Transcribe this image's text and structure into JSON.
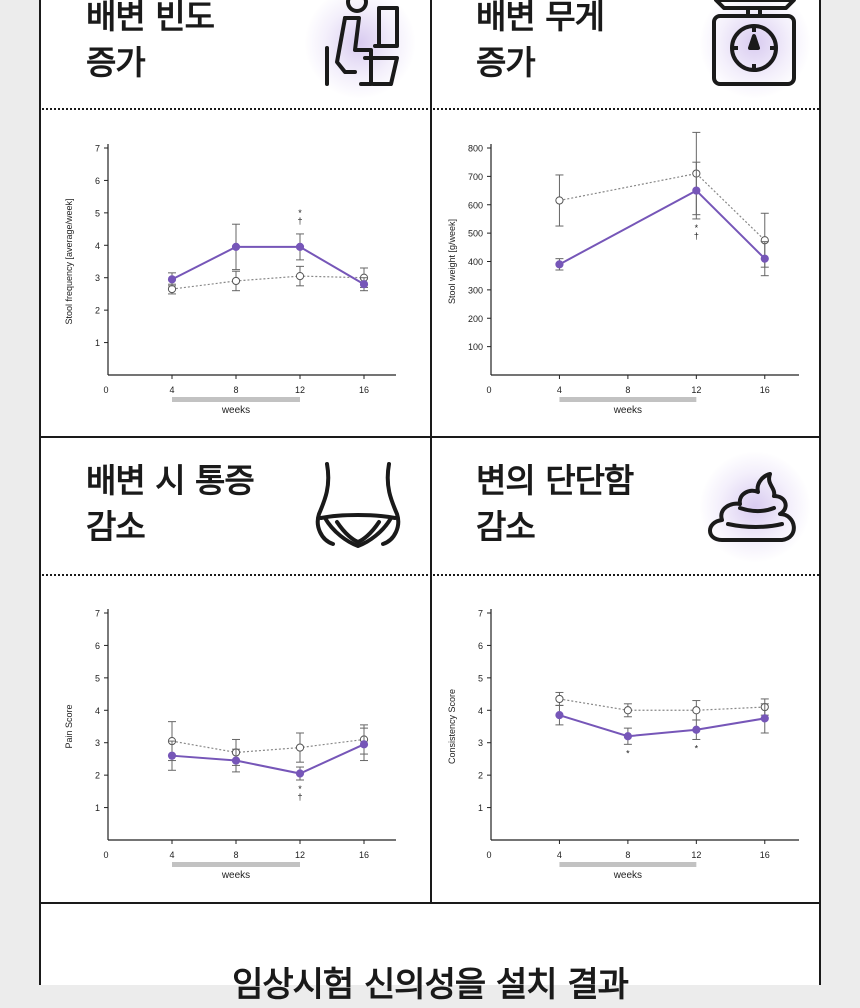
{
  "panels": [
    {
      "title_line1": "배변 빈도",
      "title_line2": "증가",
      "icon": "toilet-icon"
    },
    {
      "title_line1": "배변 무게",
      "title_line2": "증가",
      "icon": "scale-icon"
    },
    {
      "title_line1": "배변 시 통증",
      "title_line2": "감소",
      "icon": "abdomen-icon"
    },
    {
      "title_line1": "변의 단단함",
      "title_line2": "감소",
      "icon": "stool-icon"
    }
  ],
  "bottom_title": "임상시험 신의성을 설치 결과",
  "colors": {
    "treatment": "#7656b8",
    "placebo": "#888888",
    "bar": "#c2c2c2"
  },
  "chart_data": [
    {
      "type": "line",
      "ylabel": "Stool frequency [average/week]",
      "xlabel": "weeks",
      "x_ticks": [
        0,
        4,
        8,
        12,
        16
      ],
      "y_ticks": [
        1,
        2,
        3,
        4,
        5,
        6,
        7
      ],
      "xlim": [
        0,
        18
      ],
      "ylim": [
        0,
        7
      ],
      "highlight_range": [
        4,
        12
      ],
      "series": [
        {
          "style": "filled",
          "x": [
            4,
            8,
            12,
            16
          ],
          "y": [
            2.95,
            3.95,
            3.95,
            2.8
          ],
          "err": [
            0.2,
            0.7,
            0.4,
            0.2
          ]
        },
        {
          "style": "open",
          "x": [
            4,
            8,
            12,
            16
          ],
          "y": [
            2.65,
            2.9,
            3.05,
            3.0
          ],
          "err": [
            0.15,
            0.3,
            0.3,
            0.3
          ]
        }
      ],
      "annotations": [
        {
          "x": 12,
          "text": "*†"
        }
      ]
    },
    {
      "type": "line",
      "ylabel": "Stool weight [g/week]",
      "xlabel": "weeks",
      "x_ticks": [
        0,
        4,
        8,
        12,
        16
      ],
      "y_ticks": [
        100,
        200,
        300,
        400,
        500,
        600,
        700,
        800
      ],
      "xlim": [
        0,
        18
      ],
      "ylim": [
        0,
        800
      ],
      "highlight_range": [
        4,
        12
      ],
      "series": [
        {
          "style": "filled",
          "x": [
            4,
            12,
            16
          ],
          "y": [
            390,
            650,
            410
          ],
          "err": [
            20,
            100,
            60
          ]
        },
        {
          "style": "open",
          "x": [
            4,
            12,
            16
          ],
          "y": [
            615,
            710,
            475
          ],
          "err": [
            90,
            145,
            95
          ]
        }
      ],
      "annotations": [
        {
          "x": 12,
          "text": "*†"
        }
      ]
    },
    {
      "type": "line",
      "ylabel": "Pain Score",
      "xlabel": "weeks",
      "x_ticks": [
        0,
        4,
        8,
        12,
        16
      ],
      "y_ticks": [
        1,
        2,
        3,
        4,
        5,
        6,
        7
      ],
      "xlim": [
        0,
        18
      ],
      "ylim": [
        0,
        7
      ],
      "highlight_range": [
        4,
        12
      ],
      "series": [
        {
          "style": "filled",
          "x": [
            4,
            8,
            12,
            16
          ],
          "y": [
            2.6,
            2.45,
            2.05,
            2.95
          ],
          "err": [
            0.45,
            0.35,
            0.2,
            0.5
          ]
        },
        {
          "style": "open",
          "x": [
            4,
            8,
            12,
            16
          ],
          "y": [
            3.05,
            2.7,
            2.85,
            3.1
          ],
          "err": [
            0.6,
            0.4,
            0.45,
            0.45
          ]
        }
      ],
      "annotations": [
        {
          "x": 12,
          "text": "*†"
        }
      ]
    },
    {
      "type": "line",
      "ylabel": "Consistency Score",
      "xlabel": "weeks",
      "x_ticks": [
        0,
        4,
        8,
        12,
        16
      ],
      "y_ticks": [
        1,
        2,
        3,
        4,
        5,
        6,
        7
      ],
      "xlim": [
        0,
        18
      ],
      "ylim": [
        0,
        7
      ],
      "highlight_range": [
        4,
        12
      ],
      "series": [
        {
          "style": "filled",
          "x": [
            4,
            8,
            12,
            16
          ],
          "y": [
            3.85,
            3.2,
            3.4,
            3.75
          ],
          "err": [
            0.3,
            0.25,
            0.3,
            0.45
          ]
        },
        {
          "style": "open",
          "x": [
            4,
            8,
            12,
            16
          ],
          "y": [
            4.35,
            4.0,
            4.0,
            4.1
          ],
          "err": [
            0.2,
            0.2,
            0.3,
            0.25
          ]
        }
      ],
      "annotations": [
        {
          "x": 8,
          "text": "*"
        },
        {
          "x": 12,
          "text": "*"
        }
      ]
    }
  ]
}
